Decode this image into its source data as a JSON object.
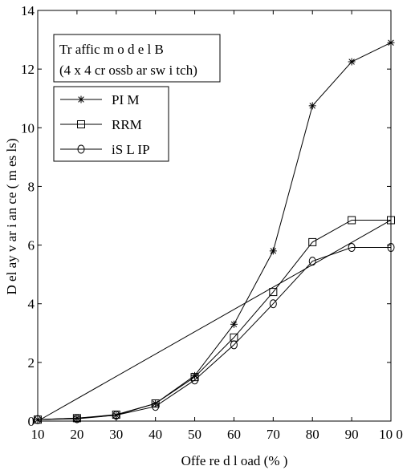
{
  "chart_data": {
    "type": "line",
    "title_lines": [
      "Tr affic m o d e l B",
      "(4 x 4 cr ossb ar sw i tch)"
    ],
    "xlabel": "Offe     re d l oad (%   )",
    "ylabel": "D   el   ay   v   ar   i   an   ce   (   m   es   ls)",
    "xlim": [
      10,
      100
    ],
    "ylim": [
      0,
      14
    ],
    "x_ticks": [
      10,
      20,
      30,
      40,
      50,
      60,
      70,
      80,
      90,
      100
    ],
    "x_tick_labels": [
      "10",
      "20",
      "30",
      "40",
      "50",
      "60",
      "70",
      "80",
      "90",
      "10 0"
    ],
    "y_ticks": [
      0,
      2,
      4,
      6,
      8,
      10,
      12,
      14
    ],
    "y_tick_labels": [
      "0",
      "2",
      "4",
      "6",
      "8",
      "10",
      "12",
      "14"
    ],
    "grid": false,
    "legend_position": "top-left",
    "x": [
      10,
      20,
      30,
      40,
      50,
      60,
      70,
      80,
      90,
      100
    ],
    "series": [
      {
        "name": "PI M",
        "marker": "star",
        "values": [
          0.05,
          0.1,
          0.2,
          0.6,
          1.55,
          3.3,
          5.8,
          10.75,
          12.25,
          12.9
        ]
      },
      {
        "name": "RRM",
        "marker": "square",
        "values": [
          0.05,
          0.1,
          0.22,
          0.6,
          1.5,
          2.85,
          4.4,
          6.1,
          6.85,
          6.85
        ]
      },
      {
        "name": "iS L IP",
        "marker": "circle",
        "values": [
          0.05,
          0.08,
          0.2,
          0.5,
          1.4,
          2.6,
          4.0,
          5.45,
          5.92,
          5.92
        ]
      }
    ],
    "extra_line": {
      "x": [
        10,
        100
      ],
      "values": [
        0.0,
        6.85
      ]
    }
  }
}
